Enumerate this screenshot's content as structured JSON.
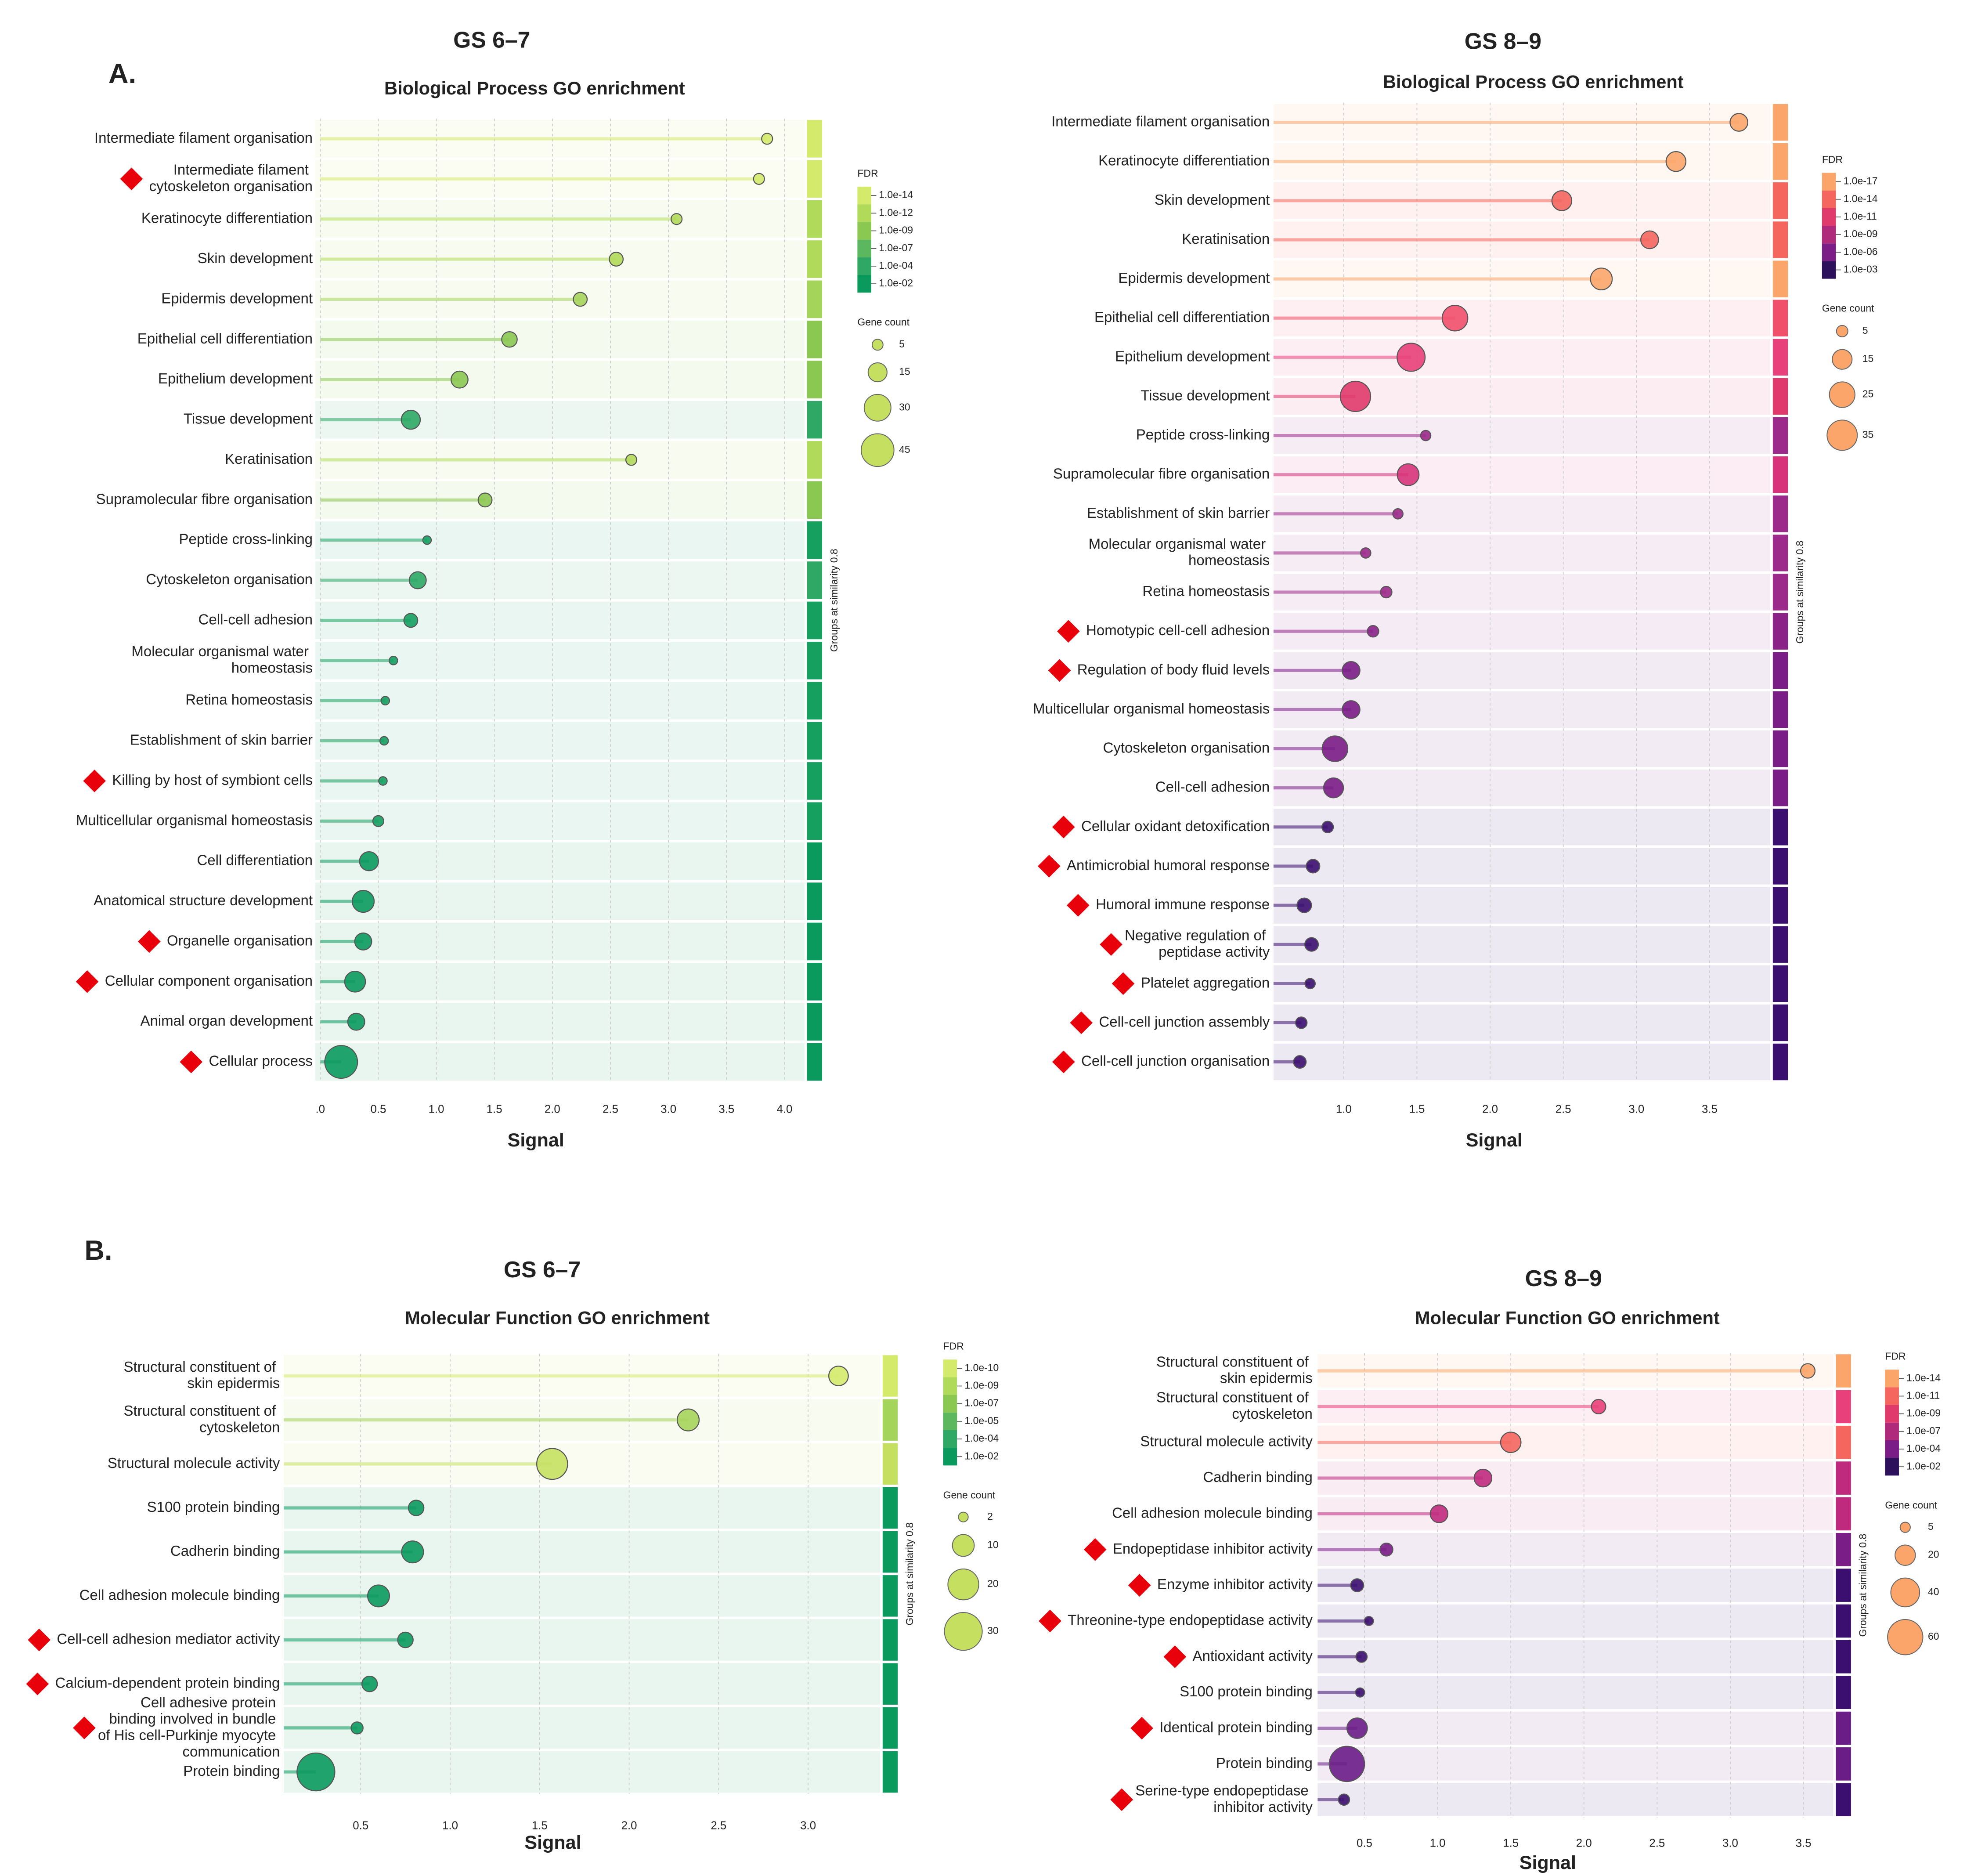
{
  "chart_data": [
    {
      "type": "lollipop",
      "panel": "A.",
      "group_title": "GS 6–7",
      "title": "Biological Process GO enrichment",
      "x_label": "Signal",
      "side_label": "Groups at similarity 0.8",
      "grid": true,
      "categories": [
        "Intermediate filament organisation",
        "Intermediate filament cytoskeleton organisation",
        "Keratinocyte differentiation",
        "Skin development",
        "Epidermis development",
        "Epithelial cell differentiation",
        "Epithelium development",
        "Tissue development",
        "Keratinisation",
        "Supramolecular fibre organisation",
        "Peptide cross-linking",
        "Cytoskeleton organisation",
        "Cell-cell adhesion",
        "Molecular organismal water homeostasis",
        "Retina homeostasis",
        "Establishment of skin barrier",
        "Killing by host of symbiont cells",
        "Multicellular organismal homeostasis",
        "Cell differentiation",
        "Anatomical structure development",
        "Organelle organisation",
        "Cellular component organisation",
        "Animal organ development",
        "Cellular process"
      ],
      "values": [
        3.85,
        3.78,
        3.07,
        2.55,
        2.24,
        1.63,
        1.2,
        0.78,
        2.68,
        1.42,
        0.92,
        0.84,
        0.78,
        0.63,
        0.56,
        0.55,
        0.54,
        0.5,
        0.42,
        0.37,
        0.37,
        0.3,
        0.31,
        0.18
      ],
      "sizes": [
        5,
        5,
        5,
        8,
        8,
        10,
        12,
        15,
        5,
        8,
        3,
        12,
        8,
        3,
        3,
        3,
        3,
        5,
        15,
        20,
        12,
        18,
        12,
        45
      ],
      "colors": [
        "#d4ea6b",
        "#d4ea6b",
        "#b0da5a",
        "#b0da5a",
        "#a5d45a",
        "#8bc852",
        "#8bc852",
        "#2ea864",
        "#b0da5a",
        "#8bc852",
        "#15a060",
        "#2ea864",
        "#15a060",
        "#15a060",
        "#15a060",
        "#15a060",
        "#15a060",
        "#15a060",
        "#0a9a5e",
        "#0a9a5e",
        "#0a9a5e",
        "#0a9a5e",
        "#0a9a5e",
        "#0a9a5e"
      ],
      "highlighted": [
        false,
        true,
        false,
        false,
        false,
        false,
        false,
        false,
        false,
        false,
        false,
        false,
        false,
        false,
        false,
        false,
        true,
        false,
        false,
        false,
        true,
        true,
        false,
        true
      ],
      "xlim": [
        0,
        4.15
      ],
      "xticks": [
        {
          "value": 0,
          "label": ".0"
        },
        0.5,
        {
          "value": 1,
          "label": "1.0"
        },
        1.5,
        {
          "value": 2,
          "label": "2.0"
        },
        2.5,
        {
          "value": 3,
          "label": "3.0"
        },
        3.5,
        {
          "value": 4,
          "label": "4.0"
        }
      ],
      "legend_title": "FDR",
      "fdr_ticks": [
        {
          "value": 1e-14,
          "label": "1.0e-14"
        },
        {
          "value": 1e-12,
          "label": "1.0e-12"
        },
        {
          "value": 1e-09,
          "label": "1.0e-09"
        },
        {
          "value": 1e-07,
          "label": "1.0e-07"
        },
        {
          "value": 0.0001,
          "label": "1.0e-04"
        },
        {
          "value": 0.01,
          "label": "1.0e-02"
        }
      ],
      "fdr_colors": [
        "#d4ea6b",
        "#b0da5a",
        "#8bc852",
        "#5cb85f",
        "#2ea864",
        "#0a9a5e"
      ],
      "size_legend_title": "Gene count",
      "size_legend": [
        5,
        15,
        30,
        45
      ],
      "size_legend_color": "#c5e060"
    },
    {
      "type": "lollipop",
      "group_title": "GS 8–9",
      "title": "Biological Process GO enrichment",
      "x_label": "Signal",
      "side_label": "Groups at similarity 0.8",
      "grid": true,
      "categories": [
        "Intermediate filament organisation",
        "Keratinocyte differentiation",
        "Skin development",
        "Keratinisation",
        "Epidermis development",
        "Epithelial cell differentiation",
        "Epithelium development",
        "Tissue development",
        "Peptide cross-linking",
        "Supramolecular fibre organisation",
        "Establishment of skin barrier",
        "Molecular organismal water homeostasis",
        "Retina homeostasis",
        "Homotypic cell-cell adhesion",
        "Regulation of body fluid levels",
        "Multicellular organismal homeostasis",
        "Cytoskeleton organisation",
        "Cell-cell adhesion",
        "Cellular oxidant detoxification",
        "Antimicrobial humoral response",
        "Humoral immune response",
        "Negative regulation of peptidase activity",
        "Platelet aggregation",
        "Cell-cell junction assembly",
        "Cell-cell junction organisation"
      ],
      "values": [
        3.7,
        3.27,
        2.49,
        3.09,
        2.76,
        1.76,
        1.46,
        1.08,
        1.56,
        1.44,
        1.37,
        1.15,
        1.29,
        1.2,
        1.05,
        1.05,
        0.94,
        0.93,
        0.89,
        0.79,
        0.73,
        0.78,
        0.77,
        0.71,
        0.7
      ],
      "sizes": [
        12,
        15,
        15,
        12,
        18,
        25,
        30,
        35,
        4,
        18,
        4,
        4,
        5,
        5,
        12,
        12,
        25,
        15,
        5,
        7,
        8,
        7,
        4,
        5,
        6
      ],
      "colors": [
        "#fca56a",
        "#fca56a",
        "#f4665e",
        "#f4665e",
        "#fca56a",
        "#f0506a",
        "#e8407a",
        "#e03a6c",
        "#9b2a8a",
        "#d6337a",
        "#9b2a8a",
        "#9b2a8a",
        "#9b2a8a",
        "#8a2288",
        "#7a1d87",
        "#7a1d87",
        "#7a1d87",
        "#7a1d87",
        "#3b0f70",
        "#3b0f70",
        "#3b0f70",
        "#3b0f70",
        "#3b0f70",
        "#3b0f70",
        "#3b0f70"
      ],
      "highlighted": [
        false,
        false,
        false,
        false,
        false,
        false,
        false,
        false,
        false,
        false,
        false,
        false,
        false,
        true,
        true,
        false,
        false,
        false,
        true,
        true,
        true,
        true,
        true,
        true,
        true
      ],
      "xlim": [
        0.52,
        3.88
      ],
      "xticks": [
        {
          "value": 1,
          "label": "1.0"
        },
        1.5,
        {
          "value": 2,
          "label": "2.0"
        },
        2.5,
        {
          "value": 3,
          "label": "3.0"
        },
        3.5
      ],
      "legend_title": "FDR",
      "fdr_ticks": [
        {
          "value": 1e-17,
          "label": "1.0e-17"
        },
        {
          "value": 1e-14,
          "label": "1.0e-14"
        },
        {
          "value": 1e-11,
          "label": "1.0e-11"
        },
        {
          "value": 1e-09,
          "label": "1.0e-09"
        },
        {
          "value": 1e-06,
          "label": "1.0e-06"
        },
        {
          "value": 0.001,
          "label": "1.0e-03"
        }
      ],
      "fdr_colors": [
        "#fca56a",
        "#f4665e",
        "#e03a6c",
        "#b02a7c",
        "#7a1d87",
        "#2c105c"
      ],
      "size_legend_title": "Gene count",
      "size_legend": [
        5,
        15,
        25,
        35
      ],
      "size_legend_color": "#fca56a"
    },
    {
      "type": "lollipop",
      "panel": "B.",
      "group_title": "GS 6–7",
      "title": "Molecular Function GO enrichment",
      "x_label": "Signal",
      "side_label": "Groups at similarity 0.8",
      "grid": true,
      "categories": [
        "Structural constituent of skin epidermis",
        "Structural constituent of cytoskeleton",
        "Structural molecule activity",
        "S100 protein binding",
        "Cadherin binding",
        "Cell adhesion molecule binding",
        "Cell-cell adhesion mediator activity",
        "Calcium-dependent protein binding",
        "Cell adhesive protein binding involved in bundle of His cell-Purkinje myocyte communication",
        "Protein binding"
      ],
      "values": [
        3.17,
        2.33,
        1.57,
        0.81,
        0.79,
        0.6,
        0.75,
        0.55,
        0.48,
        0.25
      ],
      "sizes": [
        8,
        10,
        20,
        5,
        10,
        10,
        5,
        5,
        3,
        30
      ],
      "colors": [
        "#d4ea6b",
        "#a5d45a",
        "#c5e060",
        "#0a9a5e",
        "#0a9a5e",
        "#0a9a5e",
        "#0a9a5e",
        "#0a9a5e",
        "#0a9a5e",
        "#0a9a5e"
      ],
      "highlighted": [
        false,
        false,
        false,
        false,
        false,
        false,
        true,
        true,
        true,
        false
      ],
      "xlim": [
        0.07,
        3.36
      ],
      "xticks": [
        0.5,
        {
          "value": 1,
          "label": "1.0"
        },
        1.5,
        {
          "value": 2,
          "label": "2.0"
        },
        2.5,
        {
          "value": 3,
          "label": "3.0"
        }
      ],
      "legend_title": "FDR",
      "fdr_ticks": [
        {
          "value": 1e-10,
          "label": "1.0e-10"
        },
        {
          "value": 1e-09,
          "label": "1.0e-09"
        },
        {
          "value": 1e-07,
          "label": "1.0e-07"
        },
        {
          "value": 1e-05,
          "label": "1.0e-05"
        },
        {
          "value": 0.0001,
          "label": "1.0e-04"
        },
        {
          "value": 0.01,
          "label": "1.0e-02"
        }
      ],
      "fdr_colors": [
        "#d4ea6b",
        "#b0da5a",
        "#8bc852",
        "#5cb85f",
        "#2ea864",
        "#0a9a5e"
      ],
      "size_legend_title": "Gene count",
      "size_legend": [
        2,
        10,
        20,
        30
      ],
      "size_legend_color": "#c5e060"
    },
    {
      "type": "lollipop",
      "group_title": "GS 8–9",
      "title": "Molecular Function GO enrichment",
      "x_label": "Signal",
      "side_label": "Groups at similarity 0.8",
      "grid": true,
      "categories": [
        "Structural constituent of skin epidermis",
        "Structural constituent of cytoskeleton",
        "Structural molecule activity",
        "Cadherin binding",
        "Cell adhesion molecule binding",
        "Endopeptidase inhibitor activity",
        "Enzyme inhibitor activity",
        "Threonine-type endopeptidase activity",
        "Antioxidant activity",
        "S100 protein binding",
        "Identical protein binding",
        "Protein binding",
        "Serine-type endopeptidase inhibitor activity"
      ],
      "values": [
        3.53,
        2.1,
        1.5,
        1.31,
        1.01,
        0.65,
        0.45,
        0.53,
        0.48,
        0.47,
        0.45,
        0.38,
        0.36
      ],
      "sizes": [
        10,
        10,
        20,
        15,
        15,
        8,
        8,
        4,
        6,
        4,
        20,
        60,
        6
      ],
      "colors": [
        "#fca56a",
        "#e8407a",
        "#f4665e",
        "#c02a7e",
        "#c02a7e",
        "#7a1d87",
        "#3b0f70",
        "#3b0f70",
        "#3b0f70",
        "#3b0f70",
        "#6a1d87",
        "#6a1d87",
        "#3b0f70"
      ],
      "highlighted": [
        false,
        false,
        false,
        false,
        false,
        true,
        true,
        true,
        true,
        false,
        true,
        false,
        true
      ],
      "xlim": [
        0.18,
        3.67
      ],
      "xticks": [
        0.5,
        {
          "value": 1,
          "label": "1.0"
        },
        1.5,
        {
          "value": 2,
          "label": "2.0"
        },
        2.5,
        {
          "value": 3,
          "label": "3.0"
        },
        3.5
      ],
      "legend_title": "FDR",
      "fdr_ticks": [
        {
          "value": 1e-14,
          "label": "1.0e-14"
        },
        {
          "value": 1e-11,
          "label": "1.0e-11"
        },
        {
          "value": 1e-09,
          "label": "1.0e-09"
        },
        {
          "value": 1e-07,
          "label": "1.0e-07"
        },
        {
          "value": 0.0001,
          "label": "1.0e-04"
        },
        {
          "value": 0.01,
          "label": "1.0e-02"
        }
      ],
      "fdr_colors": [
        "#fca56a",
        "#f4665e",
        "#e03a6c",
        "#b02a7c",
        "#7a1d87",
        "#2c105c"
      ],
      "size_legend_title": "Gene count",
      "size_legend": [
        5,
        20,
        40,
        60
      ],
      "size_legend_color": "#fca56a"
    }
  ]
}
